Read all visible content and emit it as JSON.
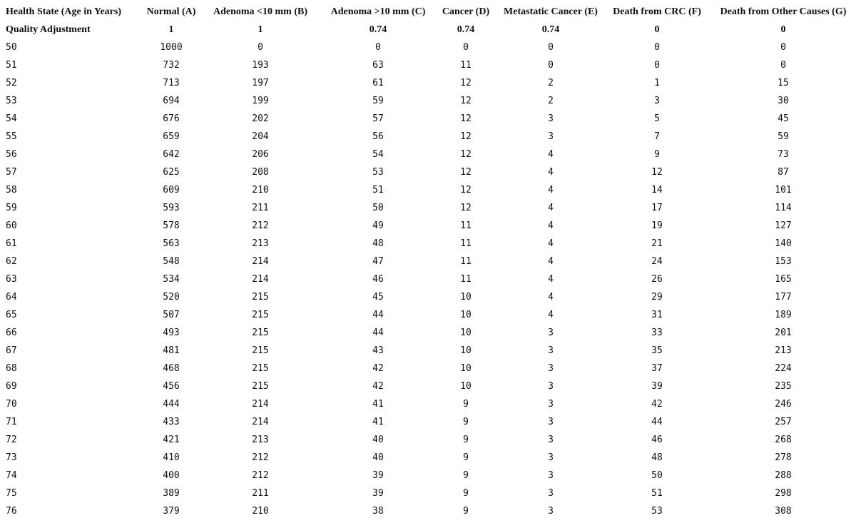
{
  "table": {
    "header": [
      "Health State (Age in Years)",
      "Normal (A)",
      "Adenoma <10 mm (B)",
      "Adenoma >10 mm (C)",
      "Cancer (D)",
      "Metastatic Cancer (E)",
      "Death from CRC (F)",
      "Death from Other Causes (G)"
    ],
    "quality_row": [
      "Quality Adjustment",
      1,
      1,
      0.74,
      0.74,
      0.74,
      0,
      0
    ],
    "rows": [
      [
        50,
        1000,
        0,
        0,
        0,
        0,
        0,
        0
      ],
      [
        51,
        732,
        193,
        63,
        11,
        0,
        0,
        0
      ],
      [
        52,
        713,
        197,
        61,
        12,
        2,
        1,
        15
      ],
      [
        53,
        694,
        199,
        59,
        12,
        2,
        3,
        30
      ],
      [
        54,
        676,
        202,
        57,
        12,
        3,
        5,
        45
      ],
      [
        55,
        659,
        204,
        56,
        12,
        3,
        7,
        59
      ],
      [
        56,
        642,
        206,
        54,
        12,
        4,
        9,
        73
      ],
      [
        57,
        625,
        208,
        53,
        12,
        4,
        12,
        87
      ],
      [
        58,
        609,
        210,
        51,
        12,
        4,
        14,
        101
      ],
      [
        59,
        593,
        211,
        50,
        12,
        4,
        17,
        114
      ],
      [
        60,
        578,
        212,
        49,
        11,
        4,
        19,
        127
      ],
      [
        61,
        563,
        213,
        48,
        11,
        4,
        21,
        140
      ],
      [
        62,
        548,
        214,
        47,
        11,
        4,
        24,
        153
      ],
      [
        63,
        534,
        214,
        46,
        11,
        4,
        26,
        165
      ],
      [
        64,
        520,
        215,
        45,
        10,
        4,
        29,
        177
      ],
      [
        65,
        507,
        215,
        44,
        10,
        4,
        31,
        189
      ],
      [
        66,
        493,
        215,
        44,
        10,
        3,
        33,
        201
      ],
      [
        67,
        481,
        215,
        43,
        10,
        3,
        35,
        213
      ],
      [
        68,
        468,
        215,
        42,
        10,
        3,
        37,
        224
      ],
      [
        69,
        456,
        215,
        42,
        10,
        3,
        39,
        235
      ],
      [
        70,
        444,
        214,
        41,
        9,
        3,
        42,
        246
      ],
      [
        71,
        433,
        214,
        41,
        9,
        3,
        44,
        257
      ],
      [
        72,
        421,
        213,
        40,
        9,
        3,
        46,
        268
      ],
      [
        73,
        410,
        212,
        40,
        9,
        3,
        48,
        278
      ],
      [
        74,
        400,
        212,
        39,
        9,
        3,
        50,
        288
      ],
      [
        75,
        389,
        211,
        39,
        9,
        3,
        51,
        298
      ],
      [
        76,
        379,
        210,
        38,
        9,
        3,
        53,
        308
      ]
    ]
  }
}
